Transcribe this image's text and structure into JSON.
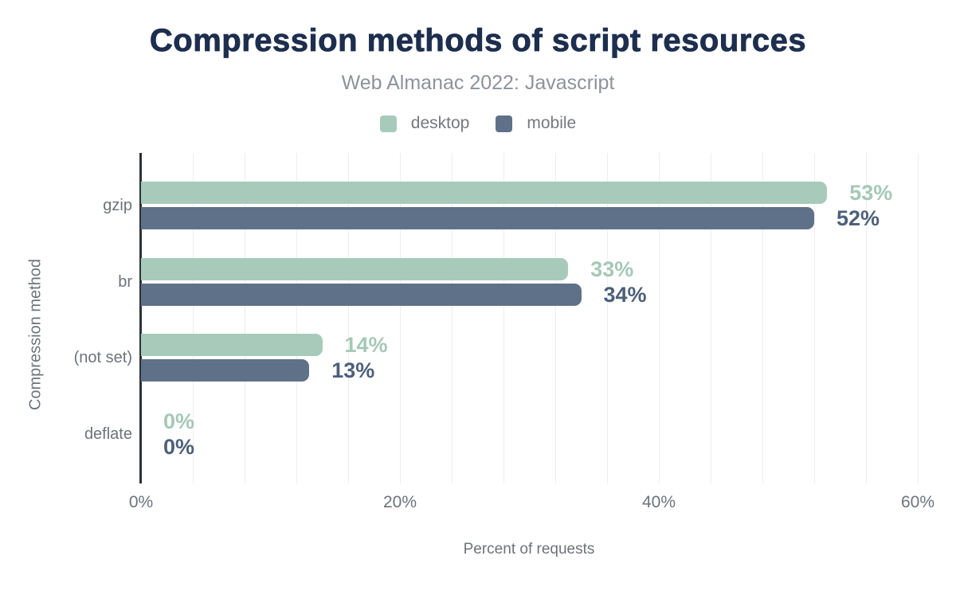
{
  "title": "Compression methods of script resources",
  "subtitle": "Web Almanac 2022: Javascript",
  "axis": {
    "x_title": "Percent of requests",
    "y_title": "Compression method"
  },
  "chart_data": {
    "type": "bar",
    "orientation": "horizontal",
    "title": "Compression methods of script resources",
    "subtitle": "Web Almanac 2022: Javascript",
    "categories": [
      "gzip",
      "br",
      "(not set)",
      "deflate"
    ],
    "series": [
      {
        "name": "desktop",
        "color": "#a8cabb",
        "label_color": "#a5c8b8",
        "values": [
          53,
          33,
          14,
          0
        ],
        "labels": [
          "53%",
          "33%",
          "14%",
          "0%"
        ]
      },
      {
        "name": "mobile",
        "color": "#5f7189",
        "label_color": "#4d607a",
        "values": [
          52,
          34,
          13,
          0
        ],
        "labels": [
          "52%",
          "34%",
          "13%",
          "0%"
        ]
      }
    ],
    "xlabel": "Percent of requests",
    "ylabel": "Compression method",
    "xlim": [
      0,
      60
    ],
    "x_ticks": [
      {
        "label": "0%",
        "value": 0
      },
      {
        "label": "20%",
        "value": 20
      },
      {
        "label": "40%",
        "value": 40
      },
      {
        "label": "60%",
        "value": 60
      }
    ],
    "gridline_interval": 4,
    "grid": true,
    "legend_position": "top",
    "axis_color": "#2e3138",
    "gridline_color": "#ededf1",
    "text_color": "#6d737c",
    "title_color": "#1d2e4e",
    "subtitle_color": "#8d939b"
  }
}
